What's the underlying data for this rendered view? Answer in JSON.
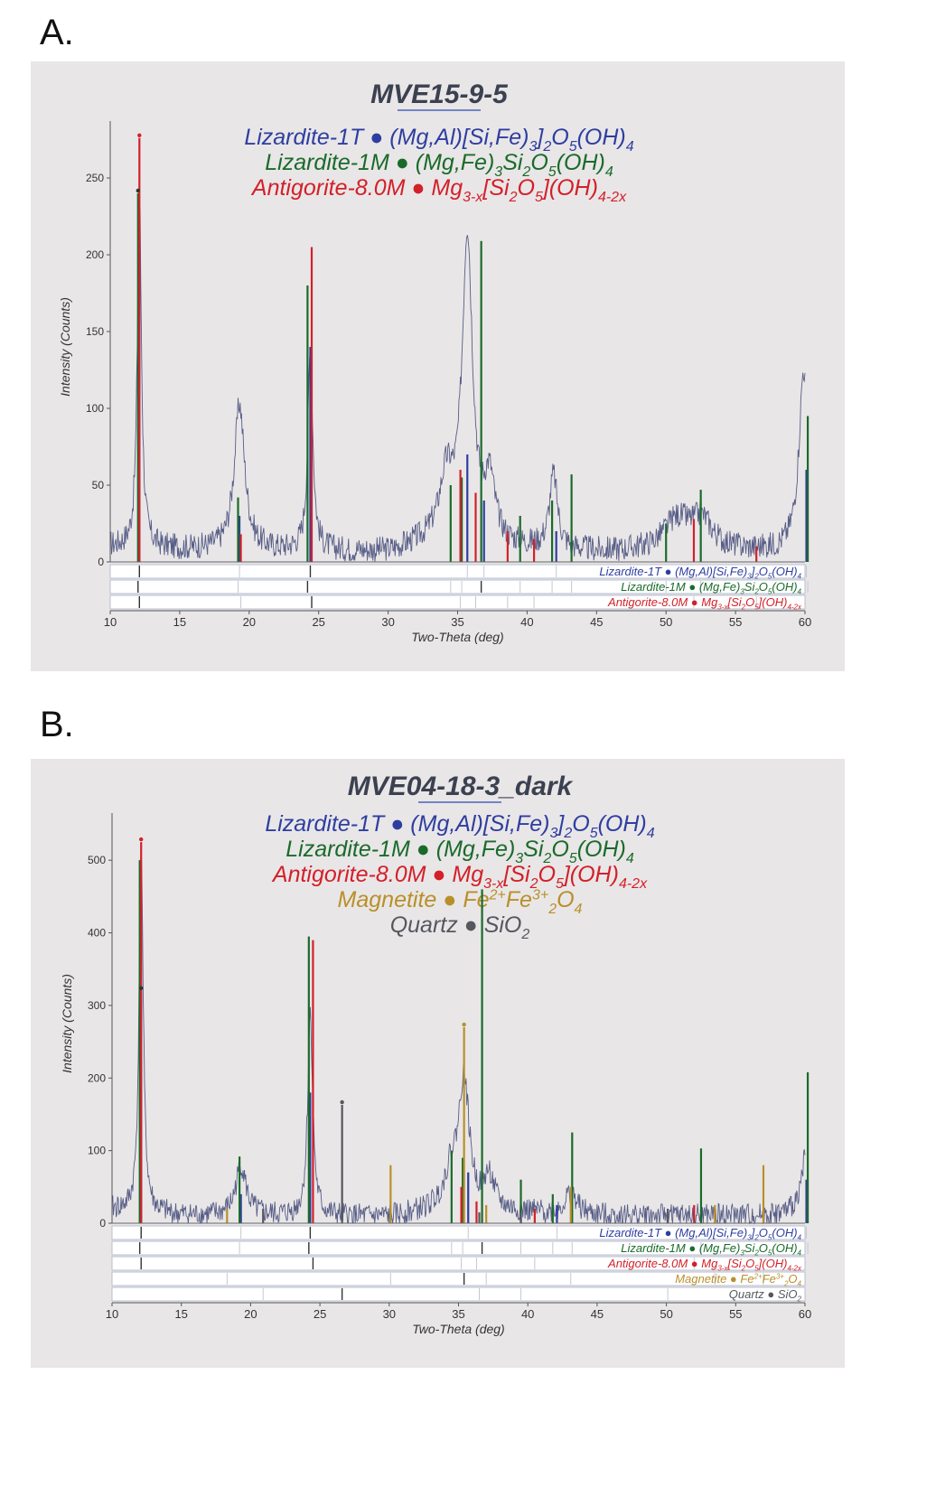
{
  "panels": [
    {
      "label": "A.",
      "title": "MVE15-9-5",
      "phases": [
        {
          "key": "lz1t",
          "color": "#2e3ea0",
          "parts": [
            [
              "Lizardite-1T ● (Mg,Al)[Si,Fe)",
              "n"
            ],
            [
              "3",
              "b"
            ],
            [
              "]",
              "n"
            ],
            [
              "2",
              "b"
            ],
            [
              "O",
              "n"
            ],
            [
              "5",
              "b"
            ],
            [
              "(OH)",
              "n"
            ],
            [
              "4",
              "b"
            ]
          ]
        },
        {
          "key": "lz1m",
          "color": "#1a6b2a",
          "parts": [
            [
              "Lizardite-1M ● (Mg,Fe)",
              "n"
            ],
            [
              "3",
              "b"
            ],
            [
              "Si",
              "n"
            ],
            [
              "2",
              "b"
            ],
            [
              "O",
              "n"
            ],
            [
              "5",
              "b"
            ],
            [
              "(OH)",
              "n"
            ],
            [
              "4",
              "b"
            ]
          ]
        },
        {
          "key": "atg",
          "color": "#d3202a",
          "parts": [
            [
              "Antigorite-8.0M ● Mg",
              "n"
            ],
            [
              "3-x",
              "b"
            ],
            [
              "[Si",
              "n"
            ],
            [
              "2",
              "b"
            ],
            [
              "O",
              "n"
            ],
            [
              "5",
              "b"
            ],
            [
              "](OH)",
              "n"
            ],
            [
              "4-2x",
              "b"
            ]
          ]
        }
      ],
      "chart_data": {
        "type": "line",
        "xlabel": "Two-Theta (deg)",
        "ylabel": "Intensity (Counts)",
        "xlim": [
          10,
          60
        ],
        "ylim": [
          0,
          280
        ],
        "xticks": [
          10,
          15,
          20,
          25,
          30,
          35,
          40,
          45,
          50,
          55,
          60
        ],
        "yticks": [
          0,
          50,
          100,
          150,
          200,
          250
        ],
        "pattern_peaks": [
          [
            12.1,
            228,
            0.18
          ],
          [
            19.3,
            95,
            0.45
          ],
          [
            24.4,
            130,
            0.22
          ],
          [
            34.2,
            40,
            0.6
          ],
          [
            35.7,
            200,
            0.45
          ],
          [
            37.3,
            40,
            0.45
          ],
          [
            41.9,
            48,
            0.35
          ],
          [
            50.8,
            20,
            1.2
          ],
          [
            52.6,
            18,
            0.9
          ],
          [
            59.9,
            115,
            0.4
          ]
        ],
        "pattern_baseline": [
          [
            10,
            10
          ],
          [
            15,
            8
          ],
          [
            30,
            6
          ],
          [
            33,
            12
          ],
          [
            45,
            6
          ],
          [
            58,
            7
          ],
          [
            60,
            10
          ]
        ],
        "sticks": {
          "lz1t": [
            [
              12.1,
              230
            ],
            [
              19.3,
              30
            ],
            [
              24.4,
              140
            ],
            [
              35.7,
              70
            ],
            [
              36.9,
              40
            ],
            [
              42.1,
              20
            ],
            [
              60.1,
              60
            ]
          ],
          "lz1m": [
            [
              12.0,
              240
            ],
            [
              19.2,
              42
            ],
            [
              24.2,
              180
            ],
            [
              34.5,
              50
            ],
            [
              35.3,
              55
            ],
            [
              36.7,
              209
            ],
            [
              39.5,
              30
            ],
            [
              41.8,
              40
            ],
            [
              43.2,
              57
            ],
            [
              50.0,
              25
            ],
            [
              52.5,
              47
            ],
            [
              60.2,
              95
            ]
          ],
          "atg": [
            [
              12.1,
              276
            ],
            [
              19.4,
              18
            ],
            [
              24.5,
              205
            ],
            [
              35.2,
              60
            ],
            [
              36.3,
              45
            ],
            [
              38.6,
              20
            ],
            [
              40.5,
              15
            ],
            [
              52.0,
              28
            ],
            [
              56.5,
              10
            ]
          ]
        }
      }
    },
    {
      "label": "B.",
      "title": "MVE04-18-3_dark",
      "phases": [
        {
          "key": "lz1t",
          "color": "#2e3ea0",
          "parts": [
            [
              "Lizardite-1T ● (Mg,Al)[Si,Fe)",
              "n"
            ],
            [
              "3",
              "b"
            ],
            [
              "]",
              "n"
            ],
            [
              "2",
              "b"
            ],
            [
              "O",
              "n"
            ],
            [
              "5",
              "b"
            ],
            [
              "(OH)",
              "n"
            ],
            [
              "4",
              "b"
            ]
          ]
        },
        {
          "key": "lz1m",
          "color": "#1a6b2a",
          "parts": [
            [
              "Lizardite-1M ● (Mg,Fe)",
              "n"
            ],
            [
              "3",
              "b"
            ],
            [
              "Si",
              "n"
            ],
            [
              "2",
              "b"
            ],
            [
              "O",
              "n"
            ],
            [
              "5",
              "b"
            ],
            [
              "(OH)",
              "n"
            ],
            [
              "4",
              "b"
            ]
          ]
        },
        {
          "key": "atg",
          "color": "#d3202a",
          "parts": [
            [
              "Antigorite-8.0M ● Mg",
              "n"
            ],
            [
              "3-x",
              "b"
            ],
            [
              "[Si",
              "n"
            ],
            [
              "2",
              "b"
            ],
            [
              "O",
              "n"
            ],
            [
              "5",
              "b"
            ],
            [
              "](OH)",
              "n"
            ],
            [
              "4-2x",
              "b"
            ]
          ]
        },
        {
          "key": "mag",
          "color": "#b8902a",
          "parts": [
            [
              "Magnetite ● Fe",
              "n"
            ],
            [
              "2+",
              "p"
            ],
            [
              "Fe",
              "n"
            ],
            [
              "3+",
              "p"
            ],
            [
              "2",
              "b"
            ],
            [
              "O",
              "n"
            ],
            [
              "4",
              "b"
            ]
          ]
        },
        {
          "key": "qtz",
          "color": "#55585e",
          "parts": [
            [
              "Quartz ● SiO",
              "n"
            ],
            [
              "2",
              "b"
            ]
          ]
        }
      ],
      "chart_data": {
        "type": "line",
        "xlabel": "Two-Theta (deg)",
        "ylabel": "Intensity (Counts)",
        "xlim": [
          10,
          60
        ],
        "ylim": [
          0,
          550
        ],
        "xticks": [
          10,
          15,
          20,
          25,
          30,
          35,
          40,
          45,
          50,
          55,
          60
        ],
        "yticks": [
          0,
          100,
          200,
          300,
          400,
          500
        ],
        "pattern_peaks": [
          [
            12.1,
            505,
            0.18
          ],
          [
            19.3,
            70,
            0.45
          ],
          [
            24.3,
            280,
            0.22
          ],
          [
            34.5,
            50,
            0.6
          ],
          [
            35.4,
            175,
            0.45
          ],
          [
            37.2,
            45,
            0.45
          ],
          [
            43.1,
            30,
            0.5
          ],
          [
            60.0,
            75,
            0.4
          ]
        ],
        "pattern_baseline": [
          [
            10,
            18
          ],
          [
            15,
            10
          ],
          [
            30,
            8
          ],
          [
            34,
            18
          ],
          [
            45,
            10
          ],
          [
            58,
            10
          ],
          [
            60,
            14
          ]
        ],
        "sticks": {
          "lz1t": [
            [
              12.1,
              320
            ],
            [
              19.3,
              40
            ],
            [
              24.3,
              180
            ],
            [
              35.7,
              70
            ],
            [
              42.1,
              25
            ],
            [
              60.1,
              60
            ]
          ],
          "lz1m": [
            [
              12.0,
              500
            ],
            [
              19.2,
              92
            ],
            [
              24.2,
              395
            ],
            [
              34.5,
              100
            ],
            [
              35.3,
              90
            ],
            [
              36.7,
              460
            ],
            [
              39.5,
              60
            ],
            [
              41.8,
              40
            ],
            [
              43.2,
              125
            ],
            [
              52.5,
              103
            ],
            [
              60.2,
              208
            ]
          ],
          "atg": [
            [
              12.1,
              525
            ],
            [
              24.5,
              390
            ],
            [
              35.2,
              50
            ],
            [
              36.3,
              30
            ],
            [
              40.5,
              20
            ],
            [
              52.0,
              25
            ]
          ],
          "mag": [
            [
              18.3,
              20
            ],
            [
              30.1,
              80
            ],
            [
              35.4,
              270
            ],
            [
              37.0,
              25
            ],
            [
              43.1,
              50
            ],
            [
              53.5,
              25
            ],
            [
              57.0,
              80
            ]
          ],
          "qtz": [
            [
              20.9,
              20
            ],
            [
              26.6,
              163
            ],
            [
              36.5,
              15
            ],
            [
              39.5,
              15
            ],
            [
              50.1,
              20
            ]
          ]
        }
      }
    }
  ]
}
